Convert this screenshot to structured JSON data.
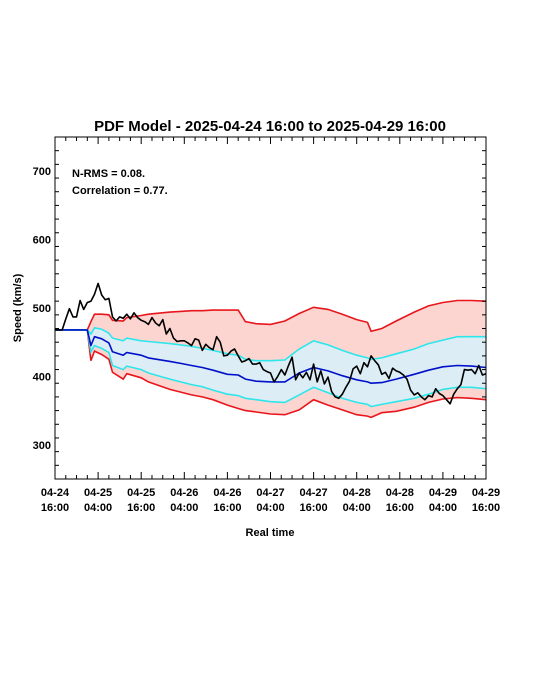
{
  "chart_data": {
    "type": "line",
    "title": "PDF Model - 2025-04-24 16:00 to 2025-04-29 16:00",
    "xlabel": "Real time",
    "ylabel": "Speed (km/s)",
    "xlim": [
      0,
      120
    ],
    "ylim": [
      250,
      750
    ],
    "annotations": [
      "N-RMS = 0.08.",
      "Correlation = 0.77."
    ],
    "x_ticks": [
      {
        "value": 0,
        "label": [
          "04-24",
          "16:00"
        ]
      },
      {
        "value": 12,
        "label": [
          "04-25",
          "04:00"
        ]
      },
      {
        "value": 24,
        "label": [
          "04-25",
          "16:00"
        ]
      },
      {
        "value": 36,
        "label": [
          "04-26",
          "04:00"
        ]
      },
      {
        "value": 48,
        "label": [
          "04-26",
          "16:00"
        ]
      },
      {
        "value": 60,
        "label": [
          "04-27",
          "04:00"
        ]
      },
      {
        "value": 72,
        "label": [
          "04-27",
          "16:00"
        ]
      },
      {
        "value": 84,
        "label": [
          "04-28",
          "04:00"
        ]
      },
      {
        "value": 96,
        "label": [
          "04-28",
          "16:00"
        ]
      },
      {
        "value": 108,
        "label": [
          "04-29",
          "04:00"
        ]
      },
      {
        "value": 120,
        "label": [
          "04-29",
          "16:00"
        ]
      }
    ],
    "y_ticks": [
      300,
      400,
      500,
      600,
      700
    ],
    "outer_band": {
      "x": [
        0,
        9,
        10,
        11,
        13,
        15,
        16,
        19,
        20,
        24,
        26,
        32,
        35,
        38,
        41,
        44,
        48,
        51,
        53,
        56,
        60,
        64,
        68,
        72,
        76,
        80,
        84,
        87,
        88,
        91,
        95,
        100,
        104,
        108,
        112,
        116,
        120
      ],
      "upper": [
        468,
        468,
        480,
        491,
        491,
        490,
        482,
        481,
        486,
        489,
        491,
        494,
        495,
        496,
        496,
        497,
        497,
        497,
        480,
        477,
        476,
        481,
        492,
        501,
        498,
        491,
        483,
        479,
        466,
        470,
        481,
        494,
        503,
        508,
        511,
        511,
        510
      ],
      "lower": [
        468,
        468,
        423,
        437,
        432,
        425,
        406,
        396,
        404,
        398,
        392,
        381,
        377,
        373,
        370,
        366,
        358,
        353,
        350,
        348,
        345,
        344,
        351,
        366,
        358,
        351,
        344,
        342,
        340,
        347,
        349,
        355,
        362,
        367,
        369,
        368,
        366
      ]
    },
    "inner_band": {
      "x": [
        0,
        9,
        10,
        11,
        13,
        15,
        16,
        19,
        20,
        24,
        26,
        32,
        35,
        38,
        41,
        44,
        48,
        51,
        53,
        56,
        60,
        64,
        68,
        72,
        76,
        80,
        84,
        87,
        88,
        91,
        95,
        100,
        104,
        108,
        112,
        116,
        120
      ],
      "upper": [
        468,
        468,
        462,
        471,
        469,
        463,
        456,
        452,
        456,
        452,
        451,
        448,
        446,
        444,
        441,
        438,
        433,
        431,
        425,
        423,
        423,
        424,
        440,
        452,
        446,
        438,
        431,
        427,
        425,
        427,
        433,
        440,
        448,
        453,
        458,
        458,
        458
      ],
      "lower": [
        468,
        468,
        436,
        445,
        441,
        435,
        416,
        410,
        415,
        410,
        405,
        396,
        392,
        388,
        385,
        380,
        374,
        372,
        368,
        366,
        363,
        362,
        373,
        384,
        376,
        368,
        362,
        359,
        356,
        359,
        363,
        368,
        374,
        381,
        384,
        384,
        382
      ]
    },
    "series": [
      {
        "color": "#0010c8",
        "x": [
          0,
          9,
          10,
          11,
          13,
          15,
          16,
          19,
          20,
          24,
          26,
          32,
          35,
          38,
          41,
          44,
          48,
          51,
          53,
          56,
          60,
          64,
          68,
          72,
          76,
          80,
          84,
          87,
          88,
          91,
          95,
          100,
          104,
          108,
          112,
          116,
          120
        ],
        "y": [
          468,
          468,
          445,
          458,
          455,
          449,
          436,
          431,
          435,
          431,
          427,
          422,
          419,
          416,
          413,
          409,
          403,
          402,
          396,
          393,
          392,
          392,
          405,
          413,
          408,
          401,
          395,
          392,
          390,
          391,
          396,
          403,
          409,
          414,
          416,
          415,
          413
        ]
      },
      {
        "color": "#000000",
        "x": [
          0,
          2,
          3,
          4,
          5,
          6,
          7,
          8,
          9,
          10,
          11,
          12,
          13,
          14,
          15,
          16,
          17,
          18,
          19,
          20,
          21,
          22,
          23,
          24,
          25,
          26,
          27,
          28,
          29,
          30,
          31,
          32,
          33,
          34,
          35,
          36,
          37,
          38,
          39,
          40,
          41,
          42,
          43,
          44,
          45,
          46,
          47,
          48,
          49,
          50,
          51,
          52,
          53,
          54,
          55,
          56,
          57,
          58,
          59,
          60,
          61,
          62,
          63,
          64,
          65,
          66,
          67,
          68,
          69,
          70,
          71,
          72,
          73,
          74,
          75,
          76,
          77,
          78,
          79,
          80,
          81,
          82,
          83,
          84,
          85,
          86,
          87,
          88,
          89,
          90,
          91,
          92,
          93,
          94,
          95,
          96,
          97,
          98,
          99,
          100,
          101,
          102,
          103,
          104,
          105,
          106,
          107,
          108,
          109,
          110,
          111,
          112,
          113,
          114,
          115,
          116,
          117,
          118,
          119,
          120
        ],
        "y": [
          468,
          468,
          484,
          499,
          487,
          487,
          511,
          498,
          508,
          510,
          520,
          536,
          519,
          512,
          514,
          487,
          481,
          487,
          485,
          491,
          484,
          493,
          486,
          482,
          480,
          476,
          486,
          478,
          474,
          483,
          462,
          470,
          456,
          451,
          452,
          452,
          449,
          445,
          455,
          453,
          438,
          447,
          442,
          439,
          458,
          450,
          430,
          431,
          437,
          440,
          430,
          421,
          423,
          426,
          418,
          418,
          420,
          410,
          407,
          405,
          392,
          400,
          410,
          402,
          416,
          428,
          395,
          405,
          398,
          406,
          395,
          418,
          392,
          408,
          389,
          399,
          378,
          370,
          368,
          374,
          384,
          393,
          411,
          415,
          404,
          420,
          414,
          430,
          423,
          417,
          403,
          406,
          397,
          412,
          408,
          406,
          402,
          396,
          380,
          373,
          376,
          370,
          366,
          372,
          370,
          382,
          375,
          372,
          366,
          360,
          374,
          382,
          388,
          410,
          409,
          410,
          404,
          416,
          402,
          404
        ]
      }
    ]
  }
}
